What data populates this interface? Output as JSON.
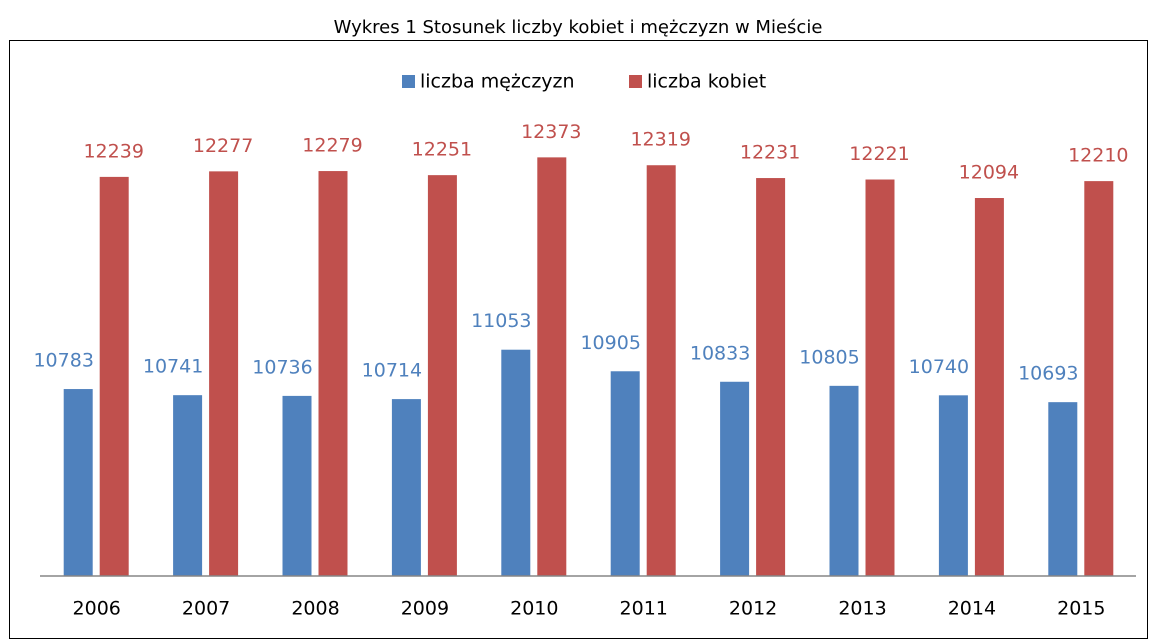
{
  "chart_data": {
    "type": "bar",
    "title": "Wykres 1 Stosunek liczby kobiet i mężczyzn w Mieście",
    "categories": [
      "2006",
      "2007",
      "2008",
      "2009",
      "2010",
      "2011",
      "2012",
      "2013",
      "2014",
      "2015"
    ],
    "series": [
      {
        "name": "liczba mężczyzn",
        "color": "#4f81bd",
        "values": [
          10783,
          10741,
          10736,
          10714,
          11053,
          10905,
          10833,
          10805,
          10740,
          10693
        ]
      },
      {
        "name": "liczba kobiet",
        "color": "#c0504d",
        "values": [
          12239,
          12277,
          12279,
          12251,
          12373,
          12319,
          12231,
          12221,
          12094,
          12210
        ]
      }
    ],
    "ylim": [
      9500,
      13000
    ],
    "legend": "top"
  }
}
